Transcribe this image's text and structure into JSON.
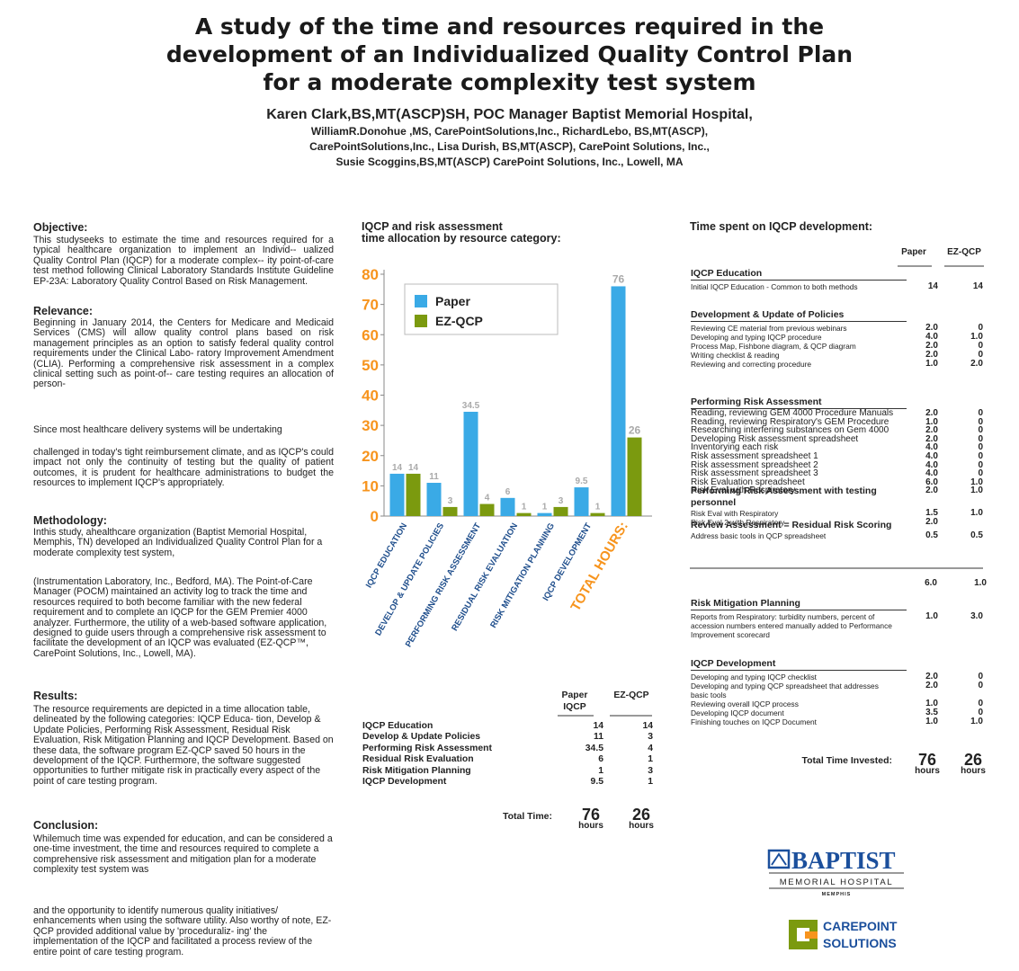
{
  "title": [
    "A study of the time and resources required in the",
    "development of an Individualized Quality Control Plan",
    "for a moderate complexity test system"
  ],
  "authors": [
    "Karen Clark,BS,MT(ASCP)SH, POC Manager Baptist Memorial Hospital,",
    "WilliamR.Donohue  ,MS, CarePointSolutions,Inc., RichardLebo, BS,MT(ASCP),",
    "CarePointSolutions,Inc., Lisa Durish, BS,MT(ASCP), CarePoint Solutions, Inc.,",
    "Susie Scoggins,BS,MT(ASCP) CarePoint Solutions, Inc., Lowell, MA"
  ],
  "sections": [
    {
      "heading": "Objective:",
      "paragraphs": [
        "This studyseeks to estimate the time and resources required for a typical healthcare organization to implement an Individ-- ualized Quality Control Plan (IQCP) for a moderate complex-- ity point-of-care test method following Clinical Laboratory Standards Institute Guideline EP-23A: Laboratory Quality Control Based on Risk Management."
      ]
    },
    {
      "heading": "Relevance:",
      "paragraphs": [
        "Beginning in January 2014, the Centers for Medicare and Medicaid Services (CMS) will allow quality control plans based on risk management principles as an option to satisfy federal quality control requirements under the Clinical Labo- ratory Improvement Amendment (CLIA). Performing a comprehensive risk assessment in a complex clinical setting such as point-of-- care testing requires an allocation of person-",
        "Since most healthcare delivery systems will be undertaking",
        "challenged in today's tight reimbursement climate, and as IQCP's could impact not only the continuity of testing but the quality of patient outcomes, it is prudent for healthcare administrations to budget the resources to implement IQCP's appropriately."
      ]
    },
    {
      "heading": "Methodology:",
      "paragraphs": [
        "Inthis study, ahealthcare organization (Baptist Memorial Hospital, Memphis, TN) developed an Individualized Quality Control Plan for a moderate complexity test system,",
        "(Instrumentation Laboratory, Inc., Bedford, MA). The Point-of-Care Manager (POCM) maintained an activity log to track the time and resources required to both become familiar with the new federal requirement and to complete an IQCP for the GEM Premier 4000 analyzer. Furthermore, the utility of a web-based software application, designed to guide users through a comprehensive risk assessment to facilitate the development of an IQCP was evaluated (EZ-QCP™, CarePoint Solutions, Inc., Lowell, MA)."
      ]
    },
    {
      "heading": "Results:",
      "paragraphs": [
        "The resource requirements are depicted in a time allocation table, delineated by the following categories: IQCP Educa- tion, Develop & Update Policies, Performing Risk Assessment, Residual Risk Evaluation, Risk Mitigation Planning and IQCP Development. Based on these data, the software program EZ-QCP saved 50 hours in the development of the IQCP. Furthermore, the software suggested opportunities to further mitigate risk in practically every aspect of the point of care testing program."
      ]
    },
    {
      "heading": "Conclusion:",
      "paragraphs": [
        "Whilemuch time was expended for education, and can be considered a one-time investment, the time and resources required to complete a comprehensive risk assessment and mitigation plan for a moderate complexity test system was",
        "and the opportunity to identify numerous quality initiatives/ enhancements when using the software utility. Also worthy of note, EZ-QCP provided additional value by 'proceduraliz- ing' the implementation of the IQCP and facilitated a process review of the entire point of care testing program."
      ]
    }
  ],
  "chart_data": {
    "type": "bar",
    "title": [
      "IQCP and risk assessment",
      "time allocation by resource category:"
    ],
    "categories": [
      "IQCP EDUCATION",
      "DEVELOP & UPDATE POLICIES",
      "PERFORMING RISK ASSESSMENT",
      "RESIDUAL RISK EVALUATION",
      "RISK MITIGATION PLANNING",
      "IQCP DEVELOPMENT",
      "TOTAL HOURS:"
    ],
    "category_colors": [
      "#1f4e8c",
      "#1f4e8c",
      "#1f4e8c",
      "#1f4e8c",
      "#1f4e8c",
      "#1f4e8c",
      "#f7941d"
    ],
    "series": [
      {
        "name": "Paper",
        "color": "#3aaae6",
        "values": [
          14,
          11,
          34.5,
          6,
          1,
          9.5,
          76
        ]
      },
      {
        "name": "EZ-QCP",
        "color": "#7b9a0f",
        "values": [
          14,
          3,
          4,
          1,
          3,
          1,
          26
        ]
      }
    ],
    "ylim": [
      0,
      80
    ],
    "yticks": [
      0,
      10,
      20,
      30,
      40,
      50,
      60,
      70,
      80
    ],
    "tick_color": "#f7941d",
    "legend": "upper left"
  },
  "summary_table": {
    "columns": [
      "Paper IQCP",
      "EZ-QCP"
    ],
    "rows": [
      [
        "IQCP Education",
        "14",
        "14"
      ],
      [
        "Develop & Update Policies",
        "11",
        "3"
      ],
      [
        "Performing Risk Assessment",
        "34.5",
        "4"
      ],
      [
        "Residual Risk Evaluation",
        "6",
        "1"
      ],
      [
        "Risk Mitigation Planning",
        "1",
        "3"
      ],
      [
        "IQCP Development",
        "9.5",
        "1"
      ]
    ],
    "total": {
      "label": "Total Time:",
      "values": [
        "76",
        "26"
      ],
      "unit": "hours"
    }
  },
  "time_table": {
    "title": "Time spent on IQCP development:",
    "columns": [
      "Paper",
      "EZ-QCP"
    ],
    "sections": [
      {
        "heading": "IQCP Education",
        "rows": [
          {
            "label": "Initial IQCP Education - Common to both methods",
            "values": [
              "14",
              "14"
            ]
          }
        ]
      },
      {
        "heading": "Development & Update of Policies",
        "rows": [
          {
            "label": "Reviewing CE material from previous webinars",
            "values": [
              "2.0",
              "0"
            ]
          },
          {
            "label": "Developing and typing IQCP procedure",
            "values": [
              "4.0",
              "1.0"
            ]
          },
          {
            "label": "Process Map, Fishbone diagram, & QCP diagram",
            "values": [
              "2.0",
              "0"
            ]
          },
          {
            "label": "Writing checklist & reading",
            "values": [
              "2.0",
              "0"
            ]
          },
          {
            "label": "Reviewing and correcting procedure",
            "values": [
              "1.0",
              "2.0"
            ]
          }
        ]
      },
      {
        "heading": "Performing Risk Assessment",
        "rows": [
          {
            "label": "Reading, reviewing GEM 4000 Procedure Manuals",
            "values": [
              "2.0",
              "0"
            ]
          },
          {
            "label": "Reading, reviewing Respiratory's GEM Procedure",
            "values": [
              "1.0",
              "0"
            ]
          },
          {
            "label": "Researching interfering substances on Gem 4000",
            "values": [
              "2.0",
              "0"
            ]
          },
          {
            "label": "Developing Risk assessment spreadsheet",
            "values": [
              "2.0",
              "0"
            ]
          },
          {
            "label": "Inventorying each risk",
            "values": [
              "4.0",
              "0"
            ]
          },
          {
            "label": "Risk assessment spreadsheet 1",
            "values": [
              "4.0",
              "0"
            ]
          },
          {
            "label": "Risk assessment spreadsheet 2",
            "values": [
              "4.0",
              "0"
            ]
          },
          {
            "label": "Risk assessment spreadsheet 3",
            "values": [
              "4.0",
              "0"
            ]
          },
          {
            "label": "Risk Evaluation spreadsheet",
            "values": [
              "6.0",
              "1.0"
            ]
          },
          {
            "label": "Risk Eval with Respiratory",
            "values": [
              "2.0",
              "1.0"
            ]
          }
        ]
      },
      {
        "heading": "Performing Risk Assessment with testing personnel",
        "rows": [
          {
            "label": "Risk Eval with Respiratory",
            "values": [
              "1.5",
              "1.0"
            ]
          },
          {
            "label": "Risk Eval 2 with Respiratory",
            "values": [
              "2.0"
            ]
          }
        ]
      },
      {
        "heading": "Review Assessment = Residual Risk Scoring",
        "rows": [
          {
            "label": "Address basic tools in QCP spreadsheet",
            "values": [
              "0.5",
              "0.5"
            ]
          }
        ],
        "subtotal": [
          "6.0",
          "1.0"
        ]
      },
      {
        "heading": "Risk Mitigation Planning",
        "rows": [
          {
            "label": "Reports from Respiratory: turbidity numbers, percent of accession numbers entered manually added to Performance Improvement scorecard",
            "values": [
              "1.0",
              "3.0"
            ]
          }
        ]
      },
      {
        "heading": "IQCP Development",
        "rows": [
          {
            "label": "Developing and typing IQCP checklist",
            "values": [
              "2.0",
              "0"
            ]
          },
          {
            "label": "Developing and typing QCP spreadsheet that addresses basic tools",
            "values": [
              "2.0",
              "0"
            ]
          },
          {
            "label": "Reviewing overall IQCP process",
            "values": [
              "1.0",
              "0"
            ]
          },
          {
            "label": "Developing IQCP document",
            "values": [
              "3.5",
              "0"
            ]
          },
          {
            "label": "Finishing touches on IQCP Document",
            "values": [
              "1.0",
              "1.0"
            ]
          }
        ]
      }
    ],
    "total": {
      "label": "Total Time Invested:",
      "values": [
        "76",
        "26"
      ],
      "unit": "hours"
    }
  },
  "logos": {
    "baptist": [
      "BAPTIST",
      "MEMORIAL HOSPITAL",
      "MEMPHIS"
    ],
    "carepoint": [
      "CAREPOINT",
      "SOLUTIONS"
    ]
  }
}
